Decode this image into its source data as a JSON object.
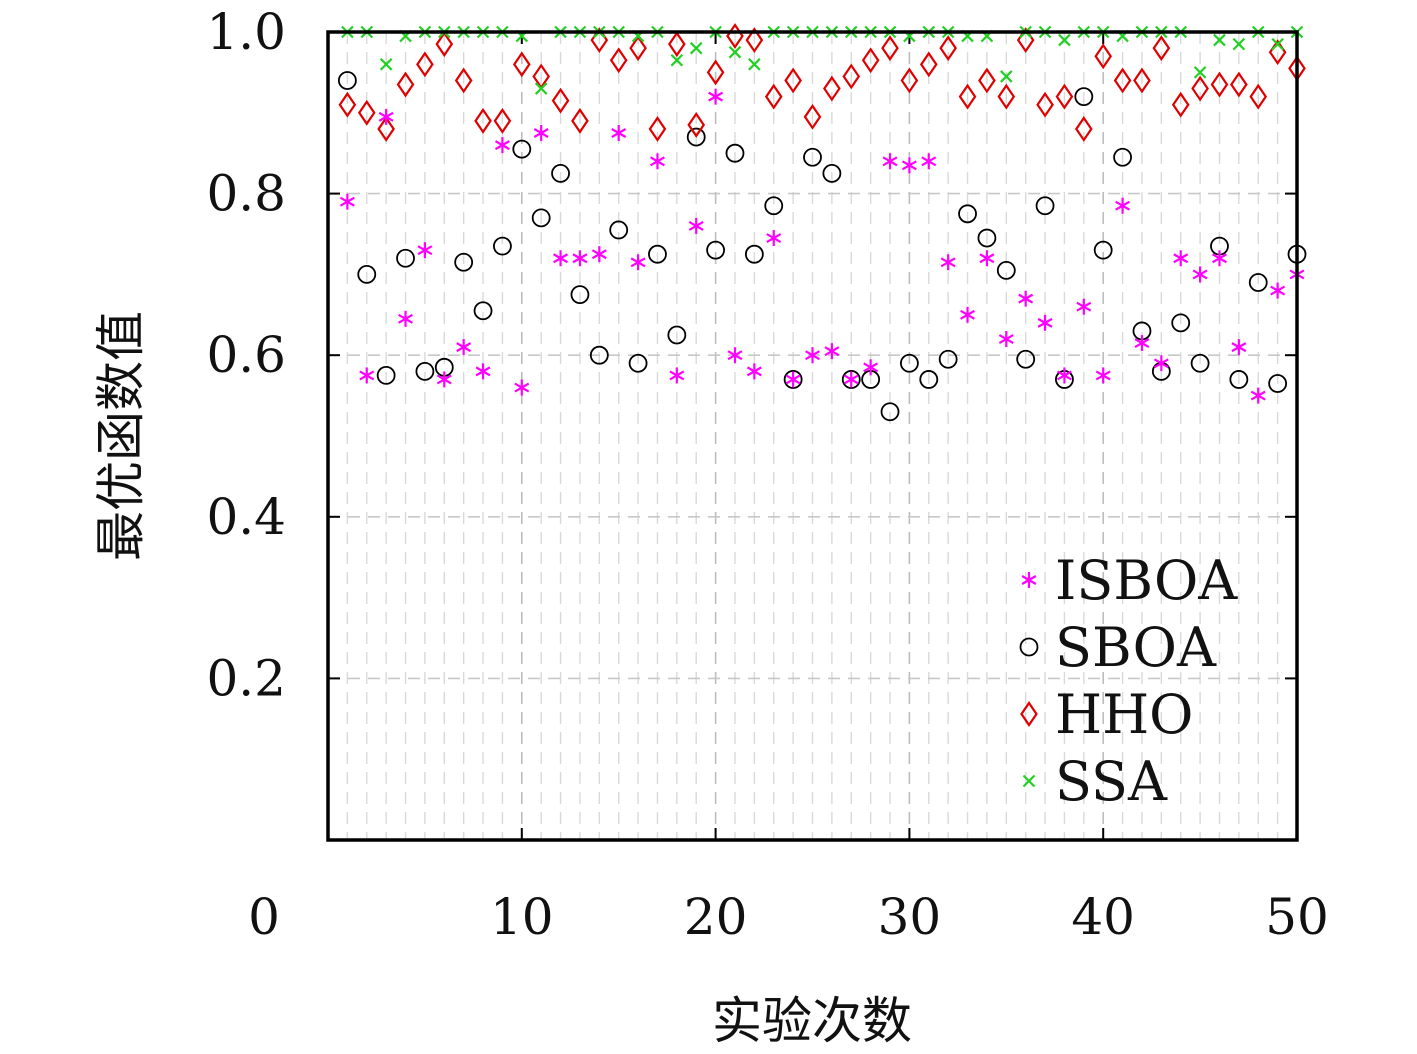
{
  "chart_data": {
    "type": "scatter",
    "xlabel": "实验次数",
    "ylabel": "最优函数值",
    "xlim": [
      0,
      50
    ],
    "ylim": [
      0,
      1.0
    ],
    "x_ticks": [
      "0",
      "10",
      "20",
      "30",
      "40",
      "50"
    ],
    "y_ticks": [
      "0.2",
      "0.4",
      "0.6",
      "0.8",
      "1.0"
    ],
    "grid": true,
    "legend_position": "bottom-right",
    "x": [
      1,
      2,
      3,
      4,
      5,
      6,
      7,
      8,
      9,
      10,
      11,
      12,
      13,
      14,
      15,
      16,
      17,
      18,
      19,
      20,
      21,
      22,
      23,
      24,
      25,
      26,
      27,
      28,
      29,
      30,
      31,
      32,
      33,
      34,
      35,
      36,
      37,
      38,
      39,
      40,
      41,
      42,
      43,
      44,
      45,
      46,
      47,
      48,
      49,
      50
    ],
    "series": [
      {
        "name": "ISBOA",
        "marker": "asterisk",
        "color": "#ff00ff",
        "values": [
          0.79,
          0.575,
          0.895,
          0.645,
          0.73,
          0.57,
          0.61,
          0.58,
          0.86,
          0.56,
          0.875,
          0.72,
          0.72,
          0.725,
          0.875,
          0.715,
          0.84,
          0.575,
          0.76,
          0.92,
          0.6,
          0.58,
          0.745,
          0.57,
          0.6,
          0.605,
          0.57,
          0.585,
          0.84,
          0.835,
          0.84,
          0.715,
          0.65,
          0.72,
          0.62,
          0.67,
          0.64,
          0.575,
          0.66,
          0.575,
          0.785,
          0.615,
          0.59,
          0.72,
          0.7,
          0.72,
          0.61,
          0.55,
          0.68,
          0.7
        ]
      },
      {
        "name": "SBOA",
        "marker": "circle",
        "color": "#000000",
        "values": [
          0.94,
          0.7,
          0.575,
          0.72,
          0.58,
          0.585,
          0.715,
          0.655,
          0.735,
          0.855,
          0.77,
          0.825,
          0.675,
          0.6,
          0.755,
          0.59,
          0.725,
          0.625,
          0.87,
          0.73,
          0.85,
          0.725,
          0.785,
          0.57,
          0.845,
          0.825,
          0.57,
          0.57,
          0.53,
          0.59,
          0.57,
          0.595,
          0.775,
          0.745,
          0.705,
          0.595,
          0.785,
          0.57,
          0.92,
          0.73,
          0.845,
          0.63,
          0.58,
          0.64,
          0.59,
          0.735,
          0.57,
          0.69,
          0.565,
          0.725
        ]
      },
      {
        "name": "HHO",
        "marker": "diamond",
        "color": "#e00000",
        "values": [
          0.91,
          0.9,
          0.88,
          0.935,
          0.96,
          0.985,
          0.94,
          0.89,
          0.89,
          0.96,
          0.945,
          0.915,
          0.89,
          0.99,
          0.965,
          0.98,
          0.88,
          0.985,
          0.885,
          0.95,
          0.995,
          0.99,
          0.92,
          0.94,
          0.895,
          0.93,
          0.945,
          0.965,
          0.98,
          0.94,
          0.96,
          0.98,
          0.92,
          0.94,
          0.92,
          0.99,
          0.91,
          0.92,
          0.88,
          0.97,
          0.94,
          0.94,
          0.98,
          0.91,
          0.93,
          0.935,
          0.935,
          0.92,
          0.975,
          0.955
        ]
      },
      {
        "name": "SSA",
        "marker": "cross",
        "color": "#22d022",
        "values": [
          1.0,
          1.0,
          0.96,
          0.995,
          1.0,
          1.0,
          1.0,
          1.0,
          1.0,
          0.995,
          0.93,
          1.0,
          1.0,
          1.0,
          1.0,
          0.995,
          1.0,
          0.965,
          0.98,
          1.0,
          0.975,
          0.96,
          1.0,
          1.0,
          1.0,
          1.0,
          1.0,
          1.0,
          1.0,
          0.995,
          1.0,
          1.0,
          0.995,
          0.995,
          0.945,
          1.0,
          1.0,
          0.99,
          1.0,
          1.0,
          0.995,
          1.0,
          1.0,
          1.0,
          0.95,
          0.99,
          0.985,
          1.0,
          0.985,
          1.0
        ]
      }
    ]
  }
}
